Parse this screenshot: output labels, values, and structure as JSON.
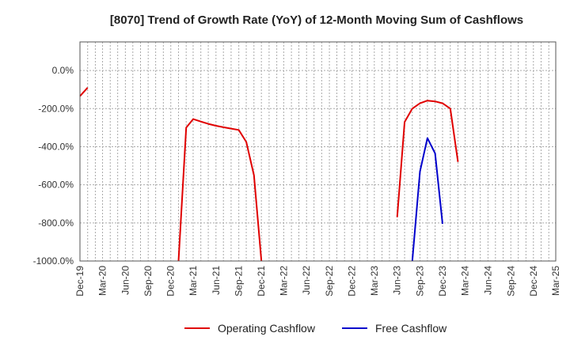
{
  "chart_data": {
    "type": "line",
    "title": "[8070]  Trend of Growth Rate (YoY) of 12-Month Moving Sum of Cashflows",
    "xlabel": "",
    "ylabel": "",
    "ylim": [
      -1000,
      150
    ],
    "y_ticks": [
      {
        "value": 0,
        "label": "0.0%"
      },
      {
        "value": -200,
        "label": "-200.0%"
      },
      {
        "value": -400,
        "label": "-400.0%"
      },
      {
        "value": -600,
        "label": "-600.0%"
      },
      {
        "value": -800,
        "label": "-800.0%"
      },
      {
        "value": -1000,
        "label": "-1000.0%"
      }
    ],
    "x_ticks": [
      "Dec-19",
      "Mar-20",
      "Jun-20",
      "Sep-20",
      "Dec-20",
      "Mar-21",
      "Jun-21",
      "Sep-21",
      "Dec-21",
      "Mar-22",
      "Jun-22",
      "Sep-22",
      "Dec-22",
      "Mar-23",
      "Jun-23",
      "Sep-23",
      "Dec-23",
      "Mar-24",
      "Jun-24",
      "Sep-24",
      "Dec-24",
      "Mar-25"
    ],
    "grid": true,
    "legend_position": "bottom",
    "series": [
      {
        "name": "Operating Cashflow",
        "color": "#e00000",
        "segments": [
          [
            [
              "2019-12",
              -135
            ],
            [
              "2020-01",
              -90
            ]
          ],
          [
            [
              "2021-01",
              -1000
            ],
            [
              "2021-02",
              -300
            ],
            [
              "2021-03",
              -255
            ],
            [
              "2021-04",
              -268
            ],
            [
              "2021-05",
              -280
            ],
            [
              "2021-06",
              -290
            ],
            [
              "2021-07",
              -298
            ],
            [
              "2021-08",
              -305
            ],
            [
              "2021-09",
              -312
            ],
            [
              "2021-10",
              -375
            ],
            [
              "2021-11",
              -550
            ],
            [
              "2021-12",
              -1000
            ]
          ],
          [
            [
              "2023-06",
              -770
            ],
            [
              "2023-07",
              -270
            ],
            [
              "2023-08",
              -200
            ],
            [
              "2023-09",
              -172
            ],
            [
              "2023-10",
              -158
            ],
            [
              "2023-11",
              -162
            ],
            [
              "2023-12",
              -172
            ],
            [
              "2024-01",
              -200
            ],
            [
              "2024-02",
              -480
            ]
          ]
        ]
      },
      {
        "name": "Free Cashflow",
        "color": "#0000cc",
        "segments": [
          [
            [
              "2023-08",
              -1000
            ],
            [
              "2023-09",
              -530
            ],
            [
              "2023-10",
              -355
            ],
            [
              "2023-11",
              -435
            ],
            [
              "2023-12",
              -805
            ]
          ]
        ]
      }
    ]
  }
}
